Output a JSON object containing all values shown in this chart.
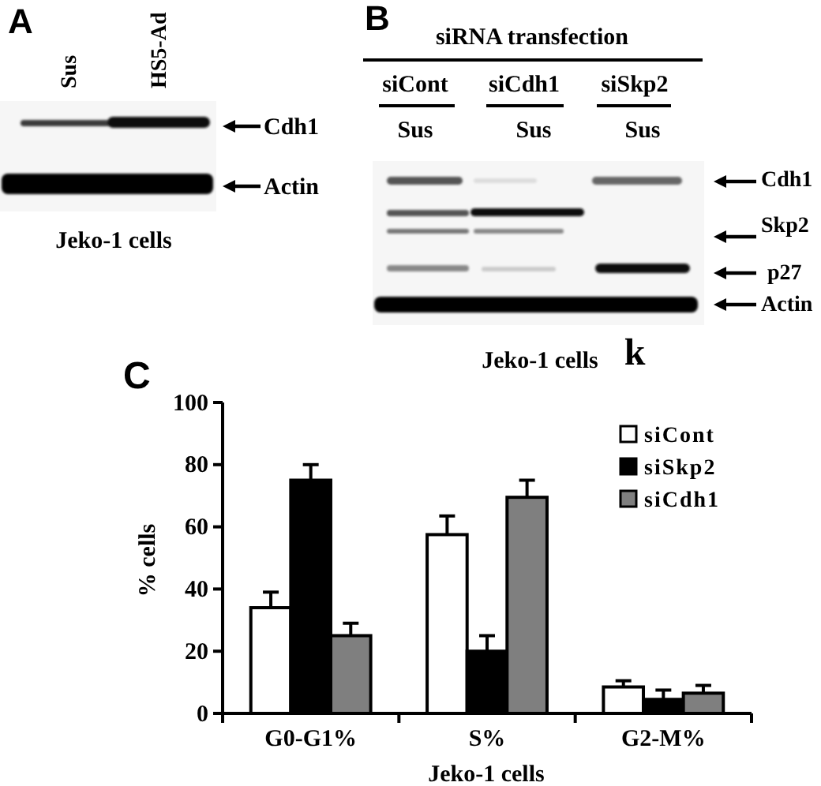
{
  "chart_data": [
    {
      "type": "other",
      "title": "A",
      "annotations": [
        "Sus",
        "HS5-Ad",
        "Cdh1",
        "Actin"
      ],
      "xlabel": "Jeko-1 cells"
    },
    {
      "type": "other",
      "title": "B",
      "subtitle": "siRNA transfection",
      "annotations": [
        "siCont",
        "siCdh1",
        "siSkp2",
        "Sus",
        "Sus",
        "Sus",
        "Cdh1",
        "Skp2",
        "p27",
        "Actin",
        "k"
      ],
      "xlabel": "Jeko-1 cells"
    },
    {
      "type": "bar",
      "title": "C",
      "xlabel": "Jeko-1 cells",
      "ylabel": "% cells",
      "categories": [
        "G0-G1%",
        "S%",
        "G2-M%"
      ],
      "series": [
        {
          "name": "siCont",
          "color": "#ffffff",
          "values": [
            34,
            57.5,
            8.5
          ],
          "errors": [
            [
              34,
              39
            ],
            [
              57.5,
              63.5
            ],
            [
              8.5,
              10.5
            ]
          ]
        },
        {
          "name": "siSkp2",
          "color": "#000000",
          "values": [
            75,
            20,
            4.5
          ],
          "errors": [
            [
              75,
              80
            ],
            [
              20,
              25
            ],
            [
              4.5,
              7.5
            ]
          ]
        },
        {
          "name": "siCdh1",
          "color": "#7f7f7f",
          "values": [
            25,
            69.5,
            6.5
          ],
          "errors": [
            [
              25,
              29
            ],
            [
              69.5,
              75
            ],
            [
              6.5,
              9
            ]
          ]
        }
      ],
      "ylim": [
        0,
        100
      ],
      "yticks": [
        0,
        20,
        40,
        60,
        80,
        100
      ],
      "legend": "top right"
    }
  ]
}
